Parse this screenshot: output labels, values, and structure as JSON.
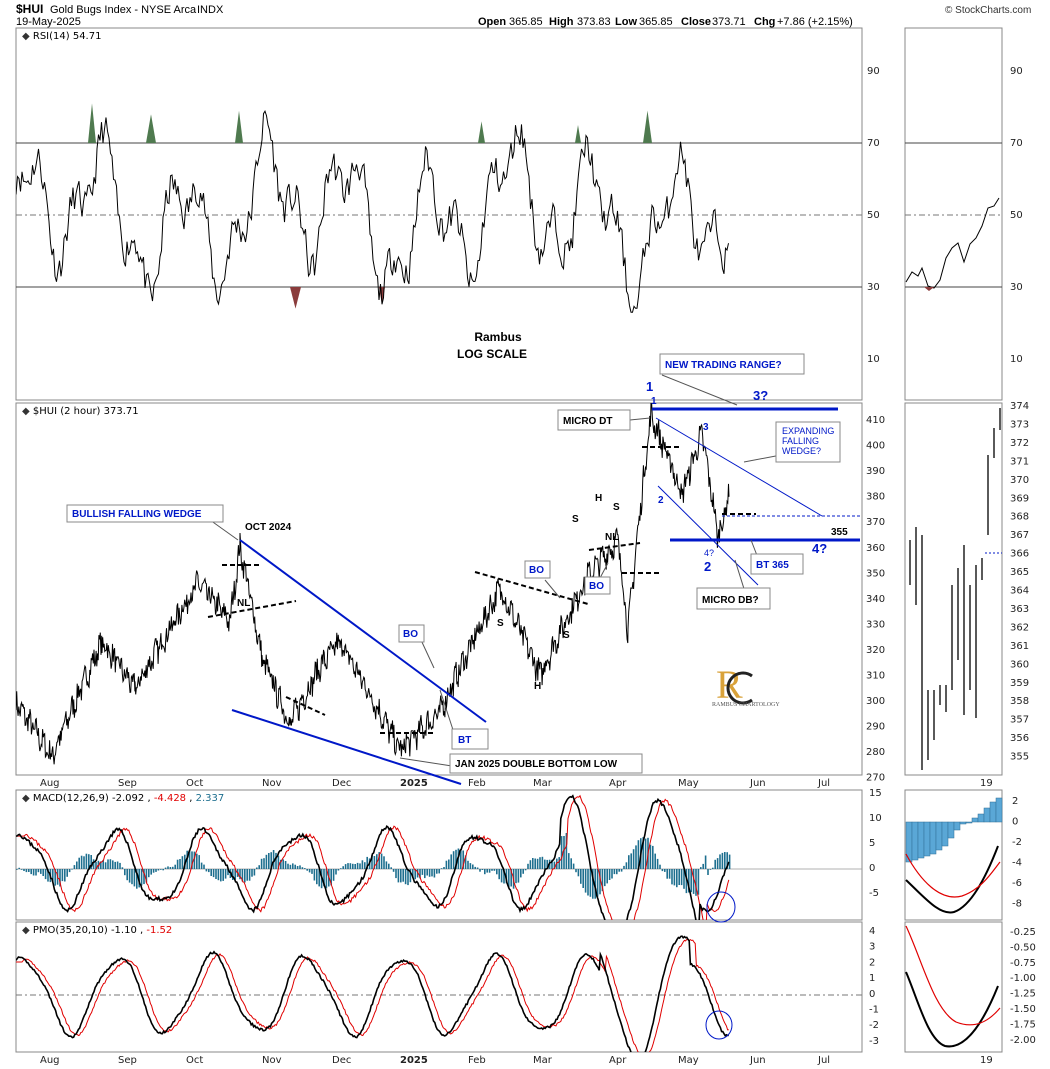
{
  "header": {
    "symbol": "$HUI",
    "name": "Gold Bugs Index - NYSE Arca",
    "exchange": "INDX",
    "date": "19-May-2025",
    "open_label": "Open",
    "open": "365.85",
    "high_label": "High",
    "high": "373.83",
    "low_label": "Low",
    "low": "365.85",
    "close_label": "Close",
    "close": "373.71",
    "chg_label": "Chg",
    "chg": "+7.86 (+2.15%)",
    "watermark": "© StockCharts.com"
  },
  "rsi_panel": {
    "label": "RSI(14) 54.71",
    "ticks": [
      "90",
      "70",
      "50",
      "30",
      "10"
    ],
    "note_line1": "Rambus",
    "note_line2": "LOG SCALE"
  },
  "price_panel": {
    "label": "$HUI (2 hour) 373.71",
    "ticks": [
      "410",
      "400",
      "390",
      "380",
      "370",
      "360",
      "350",
      "340",
      "330",
      "320",
      "310",
      "300",
      "290",
      "280",
      "270"
    ],
    "side_ticks": [
      "374",
      "373",
      "372",
      "371",
      "370",
      "369",
      "368",
      "367",
      "366",
      "365",
      "364",
      "363",
      "362",
      "361",
      "360",
      "359",
      "358",
      "357",
      "356",
      "355"
    ],
    "logo_text": "RAMBUS CHARTOLOGY",
    "annotations": {
      "new_trading_range": "NEW TRADING RANGE?",
      "three_q": "3?",
      "wave1_top": "1",
      "wave1_bottom": "1",
      "micro_dt": "MICRO DT",
      "wave3": "3",
      "expanding_falling_wedge_1": "EXPANDING",
      "expanding_falling_wedge_2": "FALLING",
      "expanding_falling_wedge_3": "WEDGE?",
      "wave2_small": "2",
      "level_355": "355",
      "four_q_small": "4?",
      "wave2_big": "2",
      "bt_365": "BT 365",
      "four_q": "4?",
      "micro_db": "MICRO DB?",
      "bullish_falling_wedge": "BULLISH FALLING WEDGE",
      "oct_2024": "OCT 2024",
      "nl1": "NL",
      "nl2": "NL",
      "bo1": "BO",
      "bo2": "BO",
      "bo3": "BO",
      "bt": "BT",
      "jan_2025": "JAN 2025 DOUBLE BOTTOM LOW",
      "s1": "S",
      "s2": "S",
      "s3": "S",
      "s4": "S",
      "h1": "H",
      "h2": "H"
    }
  },
  "macd_panel": {
    "label": "MACD(12,26,9)",
    "v1": "-2.092",
    "v2": "-4.428",
    "v3": "2.337",
    "ticks": [
      "15",
      "10",
      "5",
      "0",
      "-5"
    ],
    "side_ticks": [
      "2",
      "0",
      "-2",
      "-4",
      "-6",
      "-8"
    ]
  },
  "pmo_panel": {
    "label": "PMO(35,20,10)",
    "v1": "-1.10",
    "v2": "-1.52",
    "ticks": [
      "4",
      "3",
      "2",
      "1",
      "0",
      "-1",
      "-2",
      "-3"
    ],
    "side_ticks": [
      "-0.25",
      "-0.50",
      "-0.75",
      "-1.00",
      "-1.25",
      "-1.50",
      "-1.75",
      "-2.00"
    ]
  },
  "x_axis": {
    "months": [
      "Aug",
      "Sep",
      "Oct",
      "Nov",
      "Dec",
      "2025",
      "Feb",
      "Mar",
      "Apr",
      "May",
      "Jun",
      "Jul"
    ],
    "side_label": "19"
  },
  "colors": {
    "trendline": "#0018c8",
    "signal": "#e00000",
    "histogram": "#1e6f8f",
    "rsi_overbought_fill": "#4f7a4f",
    "rsi_oversold_fill": "#8a3c3c",
    "side_histogram": "#5aa7d6"
  },
  "chart_data": {
    "type": "line",
    "scale": "log",
    "x_months": [
      "Aug",
      "Sep",
      "Oct",
      "Nov",
      "Dec",
      "2025",
      "Feb",
      "Mar",
      "Apr",
      "May",
      "Jun",
      "Jul"
    ],
    "ylim": [
      268,
      418
    ],
    "price_anchors": [
      [
        "Jul 25",
        292
      ],
      [
        "Aug 5",
        274
      ],
      [
        "Aug 20",
        314
      ],
      [
        "Sep 5",
        297
      ],
      [
        "Sep 25",
        337
      ],
      [
        "Oct 15",
        322
      ],
      [
        "Oct 22",
        352
      ],
      [
        "Nov 5",
        308
      ],
      [
        "Nov 14",
        285
      ],
      [
        "Nov 25",
        305
      ],
      [
        "Dec 10",
        314
      ],
      [
        "Dec 30",
        276
      ],
      [
        "Jan 20",
        289
      ],
      [
        "Feb 5",
        312
      ],
      [
        "Feb 20",
        335
      ],
      [
        "Mar 10",
        302
      ],
      [
        "Mar 25",
        340
      ],
      [
        "Apr 5",
        355
      ],
      [
        "Apr 9",
        318
      ],
      [
        "Apr 21",
        412
      ],
      [
        "May 5",
        375
      ],
      [
        "May 10",
        403
      ],
      [
        "May 15",
        356
      ],
      [
        "May 19",
        373.7
      ]
    ],
    "rsi": {
      "ylim": [
        0,
        100
      ],
      "levels": [
        70,
        50,
        30
      ]
    },
    "macd": {
      "ylim": [
        -8,
        15
      ]
    },
    "pmo": {
      "ylim": [
        -3.5,
        4.5
      ]
    }
  }
}
